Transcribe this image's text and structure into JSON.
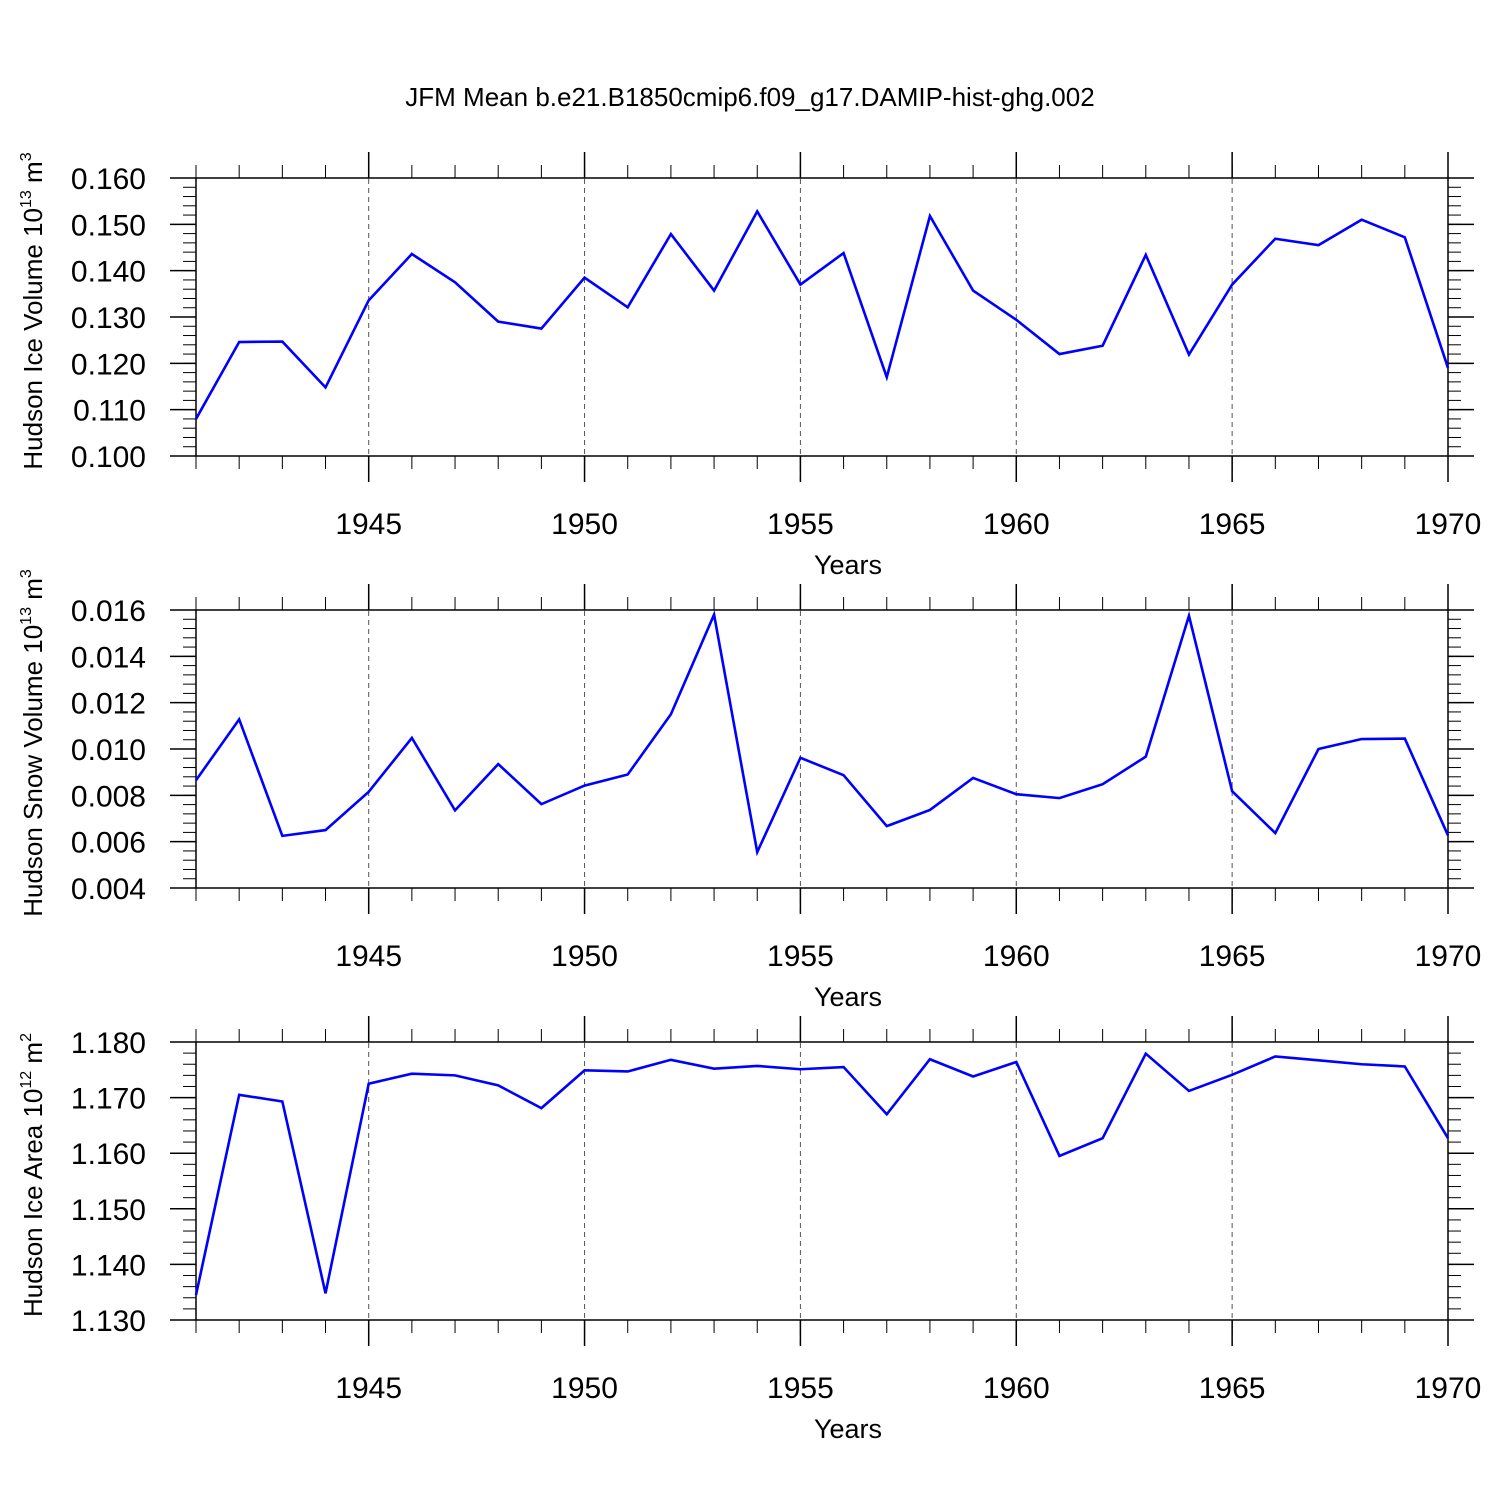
{
  "chart_data": {
    "title": "JFM Mean b.e21.B1850cmip6.f09_g17.DAMIP-hist-ghg.002",
    "years": [
      1941,
      1942,
      1943,
      1944,
      1945,
      1946,
      1947,
      1948,
      1949,
      1950,
      1951,
      1952,
      1953,
      1954,
      1955,
      1956,
      1957,
      1958,
      1959,
      1960,
      1961,
      1962,
      1963,
      1964,
      1965,
      1966,
      1967,
      1968,
      1969,
      1970
    ],
    "xlim": [
      1941,
      1970
    ],
    "xticks": [
      1945,
      1950,
      1955,
      1960,
      1965,
      1970
    ],
    "xtick_labels": [
      "1945",
      "1950",
      "1955",
      "1960",
      "1965",
      "1970"
    ],
    "line_color": "#0000ff",
    "grid_color": "#555555",
    "panels": [
      {
        "type": "line",
        "ylabel": "Hudson Ice Volume 10",
        "ylabel_exp": "13",
        "ylabel_unit": "m",
        "ylabel_unit_exp": "3",
        "xlabel": "Years",
        "ylim": [
          0.1,
          0.16
        ],
        "yticks": [
          0.1,
          0.11,
          0.12,
          0.13,
          0.14,
          0.15,
          0.16
        ],
        "ytick_labels": [
          "0.100",
          "0.110",
          "0.120",
          "0.130",
          "0.140",
          "0.150",
          "0.160"
        ],
        "values": [
          0.108,
          0.1246,
          0.1247,
          0.1148,
          0.1336,
          0.1436,
          0.1375,
          0.129,
          0.1275,
          0.1385,
          0.1321,
          0.1479,
          0.1357,
          0.1528,
          0.137,
          0.1438,
          0.117,
          0.1518,
          0.1357,
          0.1294,
          0.122,
          0.1238,
          0.1434,
          0.1219,
          0.137,
          0.1469,
          0.1455,
          0.151,
          0.1472,
          0.119
        ]
      },
      {
        "type": "line",
        "ylabel": "Hudson Snow Volume 10",
        "ylabel_exp": "13",
        "ylabel_unit": "m",
        "ylabel_unit_exp": "3",
        "xlabel": "Years",
        "ylim": [
          0.004,
          0.016
        ],
        "yticks": [
          0.004,
          0.006,
          0.008,
          0.01,
          0.012,
          0.014,
          0.016
        ],
        "ytick_labels": [
          "0.004",
          "0.006",
          "0.008",
          "0.010",
          "0.012",
          "0.014",
          "0.016"
        ],
        "values": [
          0.00865,
          0.01128,
          0.00625,
          0.0065,
          0.00815,
          0.01048,
          0.00735,
          0.00935,
          0.00762,
          0.00842,
          0.0089,
          0.0115,
          0.0158,
          0.00555,
          0.00962,
          0.00887,
          0.00667,
          0.00737,
          0.00875,
          0.00805,
          0.00788,
          0.00848,
          0.00967,
          0.01575,
          0.00818,
          0.00637,
          0.01,
          0.01043,
          0.01045,
          0.00627
        ]
      },
      {
        "type": "line",
        "ylabel": "Hudson Ice Area 10",
        "ylabel_exp": "12",
        "ylabel_unit": "m",
        "ylabel_unit_exp": "2",
        "xlabel": "Years",
        "ylim": [
          1.13,
          1.18
        ],
        "yticks": [
          1.13,
          1.14,
          1.15,
          1.16,
          1.17,
          1.18
        ],
        "ytick_labels": [
          "1.130",
          "1.140",
          "1.150",
          "1.160",
          "1.170",
          "1.180"
        ],
        "values": [
          1.1345,
          1.1705,
          1.1693,
          1.1348,
          1.1725,
          1.1743,
          1.174,
          1.1722,
          1.1681,
          1.1749,
          1.1747,
          1.1768,
          1.1752,
          1.1757,
          1.1751,
          1.1755,
          1.167,
          1.1769,
          1.1738,
          1.1764,
          1.1595,
          1.1627,
          1.1779,
          1.1712,
          1.1741,
          1.1774,
          1.1767,
          1.176,
          1.1756,
          1.1627
        ]
      }
    ]
  }
}
